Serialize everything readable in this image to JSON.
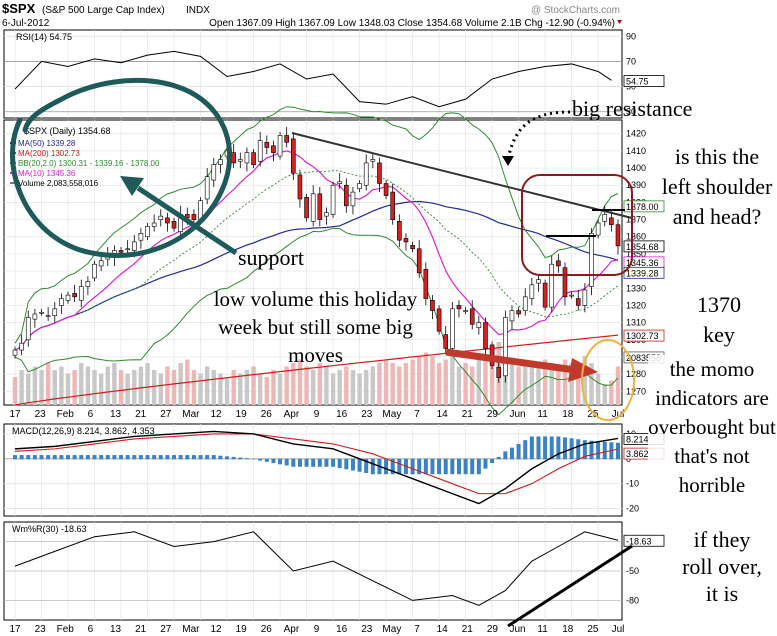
{
  "header": {
    "symbol": "$SPX",
    "name": "(S&P 500 Large Cap Index)",
    "exchange": "INDX",
    "watermark": "@ StockCharts.com",
    "date": "6-Jul-2012",
    "ohlc": "Open 1367.09  High 1367.09  Low 1348.03  Close 1354.68  Volume 2.1B  Chg -12.90 (-0.94%)"
  },
  "colors": {
    "ma50": "#1f2a9a",
    "ma200": "#d11a1a",
    "bb": "#2f8a2f",
    "ma10": "#e020d0",
    "macd": "#000000",
    "signal": "#d11a1a",
    "hist": "#3b82c4",
    "annotation_green": "#1e5a5a",
    "annotation_red": "#c0392b"
  },
  "legend": {
    "title": "$SPX (Daily) 1354.68",
    "ma50": "MA(50) 1339.28",
    "ma200": "MA(200) 1302.73",
    "bb": "BB(20,2.0) 1300.31 - 1339.16 - 1378.00",
    "ma10": "MA(10) 1345.36",
    "volume": "Volume 2,083,558,016"
  },
  "annotations": {
    "big_resistance": "big resistance",
    "support": "support",
    "volume_note": "low volume this holiday week but still some big moves",
    "shoulder": "is this the left shoulder and head?",
    "key": "1370 key",
    "momo": "the momo indicators are overbought but that's not horrible",
    "rollover": "if they roll over, it is"
  },
  "chart_data": [
    {
      "type": "line",
      "title": "RSI(14) 54.75",
      "yticks": [
        30,
        50,
        70,
        90
      ],
      "ylim": [
        25,
        95
      ],
      "last_label": "54.75",
      "x": [
        0,
        4,
        8,
        12,
        16,
        20,
        24,
        28,
        32,
        36,
        40,
        44,
        48,
        52,
        56,
        60,
        64,
        68,
        72,
        76,
        80,
        84,
        88,
        90
      ],
      "values": [
        48,
        70,
        66,
        72,
        69,
        75,
        78,
        74,
        58,
        62,
        68,
        56,
        60,
        38,
        36,
        42,
        34,
        40,
        56,
        62,
        66,
        68,
        62,
        55
      ]
    },
    {
      "type": "candlestick",
      "title": "$SPX (Daily) 1354.68",
      "yticks": [
        1270,
        1280,
        1290,
        1300,
        1310,
        1320,
        1330,
        1340,
        1350,
        1360,
        1370,
        1380,
        1390,
        1400,
        1410,
        1420
      ],
      "ylim": [
        1262,
        1428
      ],
      "xlabels": [
        "17",
        "23",
        "Feb",
        "6",
        "13",
        "21",
        "27",
        "Mar",
        "12",
        "19",
        "26",
        "Apr",
        "9",
        "16",
        "23",
        "May",
        "7",
        "14",
        "21",
        "29",
        "Jun",
        "11",
        "18",
        "25",
        "Jul"
      ],
      "price_labels": [
        "1378.00",
        "1354.68",
        "1345.36",
        "1339.28",
        "1302.73",
        "2083558"
      ],
      "close": [
        1294,
        1298,
        1313,
        1315,
        1316,
        1314,
        1318,
        1324,
        1326,
        1325,
        1331,
        1334,
        1344,
        1346,
        1350,
        1352,
        1351,
        1353,
        1357,
        1362,
        1366,
        1368,
        1372,
        1368,
        1365,
        1373,
        1371,
        1370,
        1381,
        1395,
        1402,
        1405,
        1410,
        1403,
        1405,
        1409,
        1402,
        1416,
        1412,
        1409,
        1419,
        1415,
        1397,
        1382,
        1371,
        1385,
        1370,
        1374,
        1390,
        1392,
        1378,
        1386,
        1391,
        1403,
        1405,
        1391,
        1384,
        1370,
        1358,
        1357,
        1353,
        1339,
        1324,
        1317,
        1305,
        1295,
        1318,
        1318,
        1317,
        1309,
        1310,
        1295,
        1285,
        1278,
        1313,
        1317,
        1315,
        1325,
        1332,
        1335,
        1319,
        1344,
        1343,
        1325,
        1326,
        1320,
        1329,
        1362,
        1368,
        1373,
        1367,
        1354.68
      ],
      "volume_relative": [
        0.4,
        0.5,
        0.45,
        0.55,
        0.5,
        0.6,
        0.5,
        0.55,
        0.45,
        0.5,
        0.6,
        0.55,
        0.5,
        0.45,
        0.55,
        0.6,
        0.5,
        0.45,
        0.5,
        0.55,
        0.6,
        0.5,
        0.45,
        0.55,
        0.5,
        0.6,
        0.65,
        0.5,
        0.45,
        0.55,
        0.5,
        0.45,
        0.4,
        0.5,
        0.45,
        0.5,
        0.55,
        0.45,
        0.4,
        0.5,
        0.45,
        0.55,
        0.6,
        0.65,
        0.55,
        0.5,
        0.6,
        0.55,
        0.45,
        0.5,
        0.55,
        0.5,
        0.45,
        0.5,
        0.55,
        0.6,
        0.65,
        0.6,
        0.55,
        0.6,
        0.65,
        0.7,
        0.75,
        0.7,
        0.6,
        0.65,
        0.7,
        0.55,
        0.6,
        0.55,
        0.65,
        0.7,
        0.75,
        0.9,
        0.7,
        0.6,
        0.55,
        0.6,
        0.6,
        0.55,
        0.65,
        0.6,
        0.55,
        0.65,
        0.6,
        0.5,
        0.7,
        0.6,
        0.45,
        0.3,
        0.35,
        0.55
      ]
    },
    {
      "type": "line",
      "title": "MACD(12,26,9) 8.214, 3.862, 4.353",
      "yticks": [
        -20,
        -10,
        0,
        10
      ],
      "ylim": [
        -23,
        14
      ],
      "last_labels": [
        "8.214",
        "3.862"
      ],
      "x": [
        0,
        6,
        12,
        18,
        24,
        30,
        36,
        42,
        48,
        54,
        60,
        66,
        70,
        74,
        78,
        82,
        86,
        91
      ],
      "macd": [
        4,
        5,
        7,
        9,
        10,
        11,
        10,
        6,
        4,
        -2,
        -8,
        -14,
        -18,
        -12,
        -4,
        2,
        6,
        8.2
      ],
      "signal": [
        3,
        4,
        6,
        8,
        9,
        10,
        10,
        8,
        6,
        2,
        -4,
        -10,
        -14,
        -14,
        -10,
        -4,
        1,
        3.9
      ]
    },
    {
      "type": "line",
      "title": "Wm%R(30) -18.63",
      "yticks": [
        -80,
        -50,
        -20
      ],
      "ylim": [
        -100,
        0
      ],
      "last_label": "-18.63",
      "x": [
        0,
        6,
        12,
        18,
        24,
        30,
        36,
        42,
        48,
        54,
        60,
        66,
        70,
        74,
        78,
        82,
        86,
        91
      ],
      "values": [
        -45,
        -30,
        -15,
        -10,
        -25,
        -20,
        -10,
        -50,
        -40,
        -60,
        -80,
        -75,
        -85,
        -70,
        -40,
        -25,
        -10,
        -18.63
      ]
    }
  ]
}
